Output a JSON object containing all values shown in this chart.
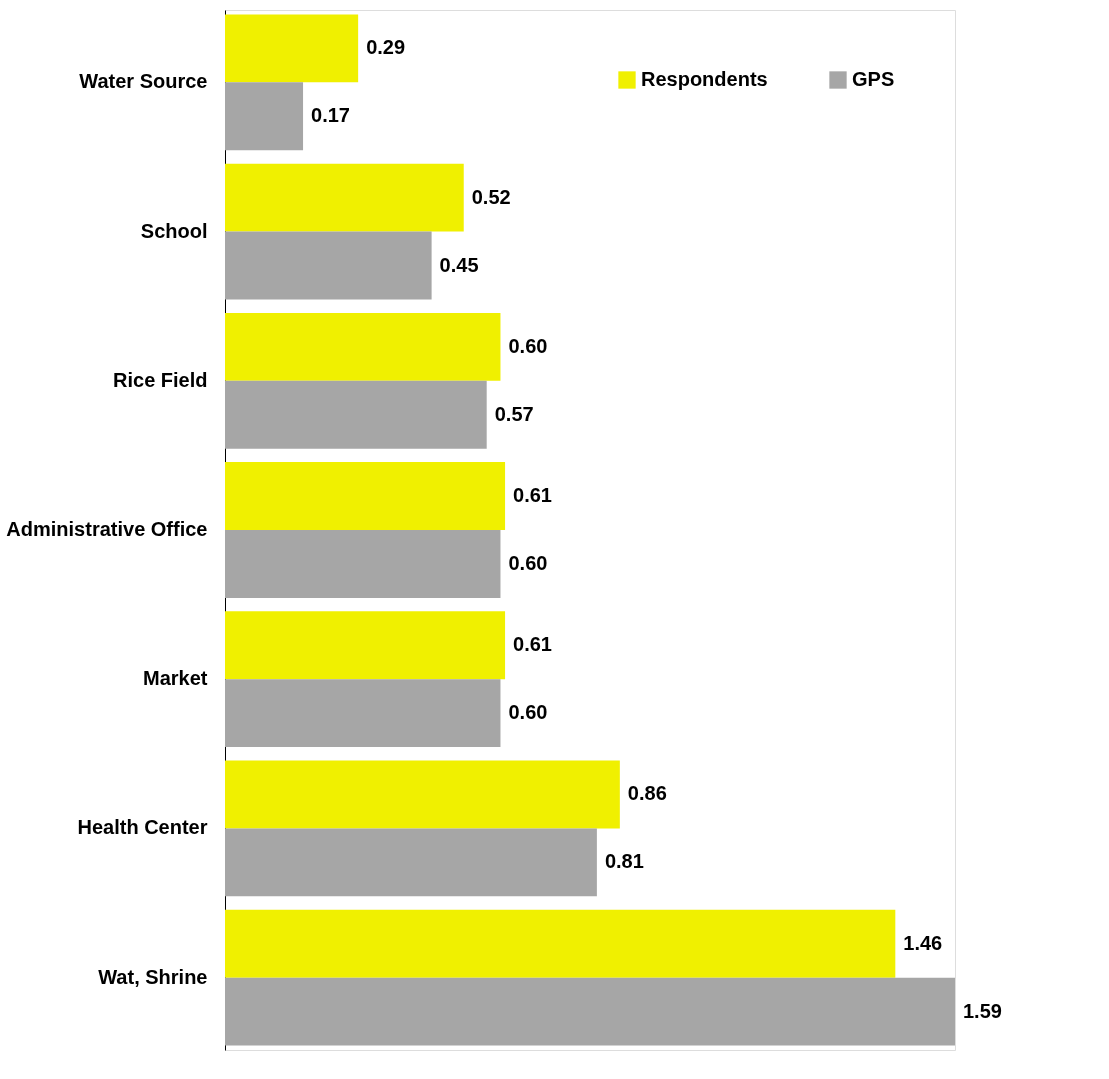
{
  "chart_data": {
    "type": "bar",
    "orientation": "horizontal",
    "categories": [
      "Water Source",
      "School",
      "Rice Field",
      "Administrative Office",
      "Market",
      "Health Center",
      "Wat, Shrine"
    ],
    "series": [
      {
        "name": "Respondents",
        "color": "#f0f000",
        "values": [
          0.29,
          0.52,
          0.6,
          0.61,
          0.61,
          0.86,
          1.46
        ],
        "value_labels": [
          "0.29",
          "0.52",
          "0.60",
          "0.61",
          "0.61",
          "0.86",
          "1.46"
        ]
      },
      {
        "name": "GPS",
        "color": "#a6a6a6",
        "values": [
          0.17,
          0.45,
          0.57,
          0.6,
          0.6,
          0.81,
          1.59
        ],
        "value_labels": [
          "0.17",
          "0.45",
          "0.57",
          "0.60",
          "0.60",
          "0.81",
          "1.59"
        ]
      }
    ],
    "legend": "top right",
    "grid": false,
    "tick_labels": "y"
  }
}
